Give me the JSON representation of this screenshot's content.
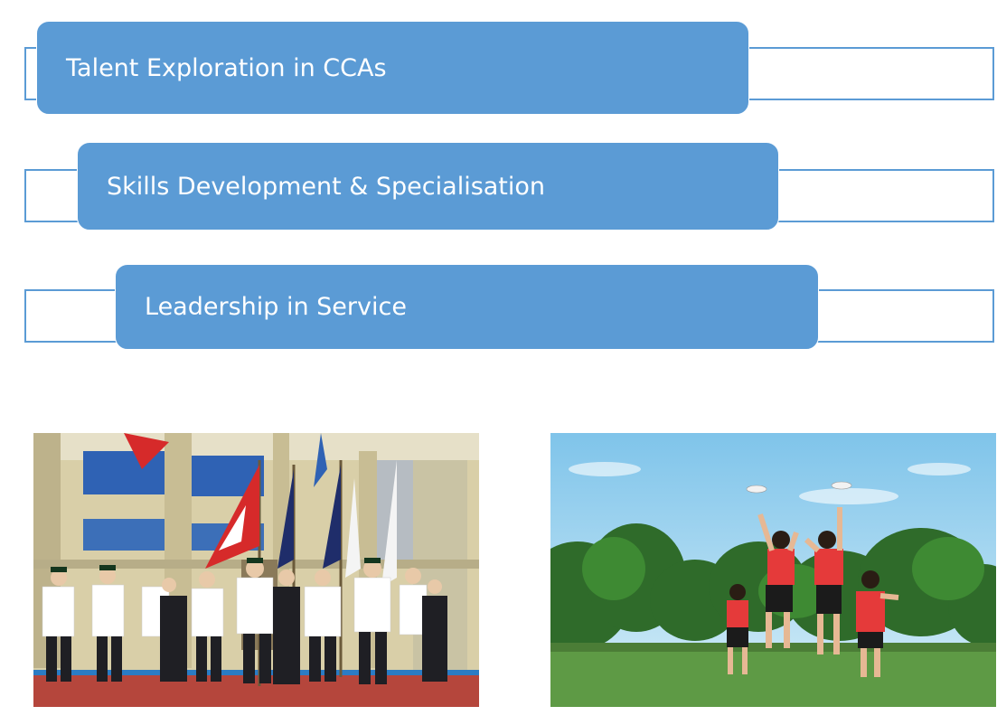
{
  "stages": [
    {
      "label": "Talent Exploration in CCAs"
    },
    {
      "label": "Skills Development & Specialisation"
    },
    {
      "label": "Leadership in Service"
    }
  ],
  "photos": [
    {
      "subject": "uniformed-groups-parade"
    },
    {
      "subject": "ultimate-frisbee-players"
    }
  ],
  "colors": {
    "accent": "#5b9bd5",
    "label_text": "#ffffff",
    "background": "#ffffff"
  }
}
